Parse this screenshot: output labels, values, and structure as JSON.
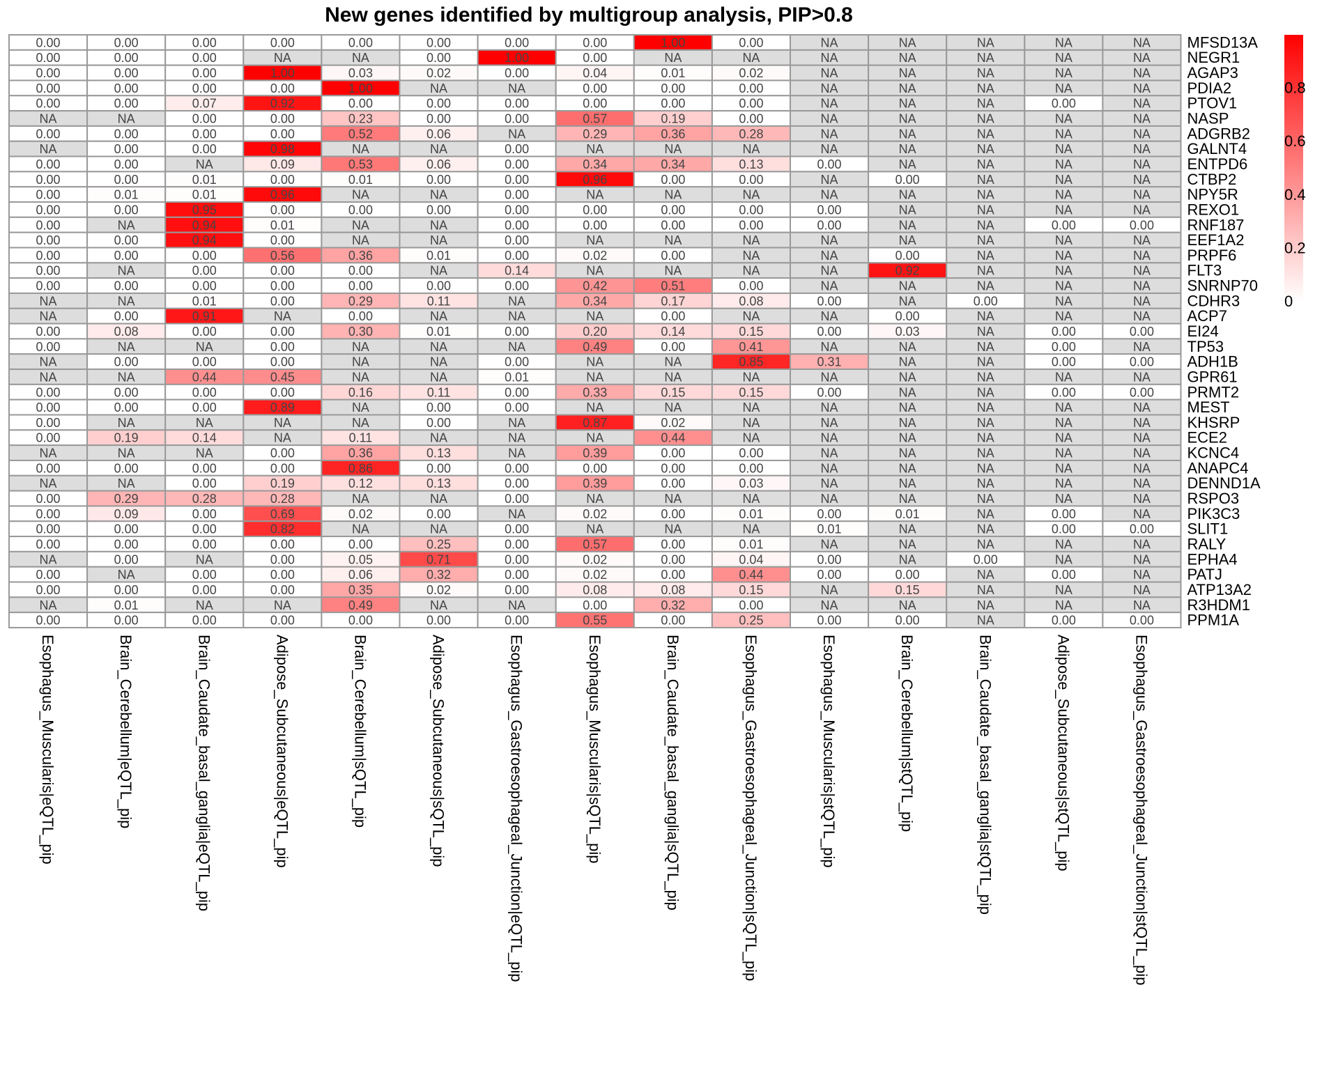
{
  "chart_data": {
    "type": "heatmap",
    "title": "New genes identified by multigroup analysis, PIP>0.8",
    "columns": [
      "Esophagus_Muscularis|eQTL_pip",
      "Brain_Cerebellum|eQTL_pip",
      "Brain_Caudate_basal_ganglia|eQTL_pip",
      "Adipose_Subcutaneous|eQTL_pip",
      "Brain_Cerebellum|sQTL_pip",
      "Adipose_Subcutaneous|sQTL_pip",
      "Esophagus_Gastroesophageal_Junction|eQTL_pip",
      "Esophagus_Muscularis|sQTL_pip",
      "Brain_Caudate_basal_ganglia|sQTL_pip",
      "Esophagus_Gastroesophageal_Junction|sQTL_pip",
      "Esophagus_Muscularis|stQTL_pip",
      "Brain_Cerebellum|stQTL_pip",
      "Brain_Caudate_basal_ganglia|stQTL_pip",
      "Adipose_Subcutaneous|stQTL_pip",
      "Esophagus_Gastroesophageal_Junction|stQTL_pip"
    ],
    "rows": [
      "MFSD13A",
      "NEGR1",
      "AGAP3",
      "PDIA2",
      "PTOV1",
      "NASP",
      "ADGRB2",
      "GALNT4",
      "ENTPD6",
      "CTBP2",
      "NPY5R",
      "REXO1",
      "RNF187",
      "EEF1A2",
      "PRPF6",
      "FLT3",
      "SNRNP70",
      "CDHR3",
      "ACP7",
      "EI24",
      "TP53",
      "ADH1B",
      "GPR61",
      "PRMT2",
      "MEST",
      "KHSRP",
      "ECE2",
      "KCNC4",
      "ANAPC4",
      "DENND1A",
      "RSPO3",
      "PIK3C3",
      "SLIT1",
      "RALY",
      "EPHA4",
      "PATJ",
      "ATP13A2",
      "R3HDM1",
      "PPM1A"
    ],
    "values": [
      [
        "0.00",
        "0.00",
        "0.00",
        "0.00",
        "0.00",
        "0.00",
        "0.00",
        "0.00",
        "1.00",
        "0.00",
        "NA",
        "NA",
        "NA",
        "NA",
        "NA"
      ],
      [
        "0.00",
        "0.00",
        "0.00",
        "NA",
        "NA",
        "0.00",
        "1.00",
        "0.00",
        "NA",
        "NA",
        "NA",
        "NA",
        "NA",
        "NA",
        "NA"
      ],
      [
        "0.00",
        "0.00",
        "0.00",
        "1.00",
        "0.03",
        "0.02",
        "0.00",
        "0.04",
        "0.01",
        "0.02",
        "NA",
        "NA",
        "NA",
        "NA",
        "NA"
      ],
      [
        "0.00",
        "0.00",
        "0.00",
        "0.00",
        "1.00",
        "NA",
        "NA",
        "0.00",
        "0.00",
        "0.00",
        "NA",
        "NA",
        "NA",
        "NA",
        "NA"
      ],
      [
        "0.00",
        "0.00",
        "0.07",
        "0.92",
        "0.00",
        "0.00",
        "0.00",
        "0.00",
        "0.00",
        "0.00",
        "NA",
        "NA",
        "NA",
        "0.00",
        "NA"
      ],
      [
        "NA",
        "NA",
        "0.00",
        "0.00",
        "0.23",
        "0.00",
        "0.00",
        "0.57",
        "0.19",
        "0.00",
        "NA",
        "NA",
        "NA",
        "NA",
        "NA"
      ],
      [
        "0.00",
        "0.00",
        "0.00",
        "0.00",
        "0.52",
        "0.06",
        "NA",
        "0.29",
        "0.36",
        "0.28",
        "NA",
        "NA",
        "NA",
        "NA",
        "NA"
      ],
      [
        "NA",
        "0.00",
        "0.00",
        "0.98",
        "NA",
        "NA",
        "0.00",
        "NA",
        "NA",
        "NA",
        "NA",
        "NA",
        "NA",
        "NA",
        "NA"
      ],
      [
        "0.00",
        "0.00",
        "NA",
        "0.09",
        "0.53",
        "0.06",
        "0.00",
        "0.34",
        "0.34",
        "0.13",
        "0.00",
        "NA",
        "NA",
        "NA",
        "NA"
      ],
      [
        "0.00",
        "0.00",
        "0.01",
        "0.00",
        "0.01",
        "0.00",
        "0.00",
        "0.96",
        "0.00",
        "0.00",
        "NA",
        "0.00",
        "NA",
        "NA",
        "NA"
      ],
      [
        "0.00",
        "0.01",
        "0.01",
        "0.96",
        "NA",
        "NA",
        "0.00",
        "NA",
        "NA",
        "NA",
        "NA",
        "NA",
        "NA",
        "NA",
        "NA"
      ],
      [
        "0.00",
        "0.00",
        "0.95",
        "0.00",
        "0.00",
        "0.00",
        "0.00",
        "0.00",
        "0.00",
        "0.00",
        "0.00",
        "NA",
        "NA",
        "NA",
        "NA"
      ],
      [
        "0.00",
        "NA",
        "0.94",
        "0.01",
        "NA",
        "NA",
        "0.00",
        "0.00",
        "0.00",
        "0.00",
        "0.00",
        "NA",
        "NA",
        "0.00",
        "0.00"
      ],
      [
        "0.00",
        "0.00",
        "0.94",
        "0.00",
        "NA",
        "NA",
        "0.00",
        "NA",
        "NA",
        "NA",
        "NA",
        "NA",
        "NA",
        "NA",
        "NA"
      ],
      [
        "0.00",
        "0.00",
        "0.00",
        "0.56",
        "0.36",
        "0.01",
        "0.00",
        "0.02",
        "0.00",
        "NA",
        "NA",
        "0.00",
        "NA",
        "NA",
        "NA"
      ],
      [
        "0.00",
        "NA",
        "0.00",
        "0.00",
        "0.00",
        "NA",
        "0.14",
        "NA",
        "NA",
        "NA",
        "NA",
        "0.92",
        "NA",
        "NA",
        "NA"
      ],
      [
        "0.00",
        "0.00",
        "0.00",
        "0.00",
        "0.00",
        "0.00",
        "0.00",
        "0.42",
        "0.51",
        "0.00",
        "NA",
        "NA",
        "NA",
        "NA",
        "NA"
      ],
      [
        "NA",
        "NA",
        "0.01",
        "0.00",
        "0.29",
        "0.11",
        "NA",
        "0.34",
        "0.17",
        "0.08",
        "0.00",
        "NA",
        "0.00",
        "NA",
        "NA"
      ],
      [
        "NA",
        "0.00",
        "0.91",
        "NA",
        "0.00",
        "NA",
        "NA",
        "NA",
        "0.00",
        "NA",
        "NA",
        "0.00",
        "NA",
        "NA",
        "NA"
      ],
      [
        "0.00",
        "0.08",
        "0.00",
        "0.00",
        "0.30",
        "0.01",
        "0.00",
        "0.20",
        "0.14",
        "0.15",
        "0.00",
        "0.03",
        "NA",
        "0.00",
        "0.00"
      ],
      [
        "0.00",
        "NA",
        "NA",
        "0.00",
        "NA",
        "NA",
        "NA",
        "0.49",
        "0.00",
        "0.41",
        "NA",
        "NA",
        "NA",
        "0.00",
        "NA"
      ],
      [
        "NA",
        "0.00",
        "0.00",
        "0.00",
        "NA",
        "NA",
        "0.00",
        "NA",
        "NA",
        "0.85",
        "0.31",
        "NA",
        "NA",
        "0.00",
        "0.00"
      ],
      [
        "NA",
        "NA",
        "0.44",
        "0.45",
        "NA",
        "NA",
        "0.01",
        "NA",
        "NA",
        "NA",
        "NA",
        "NA",
        "NA",
        "NA",
        "NA"
      ],
      [
        "0.00",
        "0.00",
        "0.00",
        "0.00",
        "0.16",
        "0.11",
        "0.00",
        "0.33",
        "0.15",
        "0.15",
        "0.00",
        "NA",
        "NA",
        "0.00",
        "0.00"
      ],
      [
        "0.00",
        "0.00",
        "0.00",
        "0.89",
        "NA",
        "0.00",
        "0.00",
        "NA",
        "NA",
        "NA",
        "NA",
        "NA",
        "NA",
        "NA",
        "NA"
      ],
      [
        "0.00",
        "NA",
        "NA",
        "NA",
        "NA",
        "0.00",
        "NA",
        "0.87",
        "0.02",
        "NA",
        "NA",
        "NA",
        "NA",
        "NA",
        "NA"
      ],
      [
        "0.00",
        "0.19",
        "0.14",
        "NA",
        "0.11",
        "NA",
        "NA",
        "NA",
        "0.44",
        "NA",
        "NA",
        "NA",
        "NA",
        "NA",
        "NA"
      ],
      [
        "NA",
        "NA",
        "NA",
        "0.00",
        "0.36",
        "0.13",
        "NA",
        "0.39",
        "0.00",
        "0.00",
        "NA",
        "NA",
        "NA",
        "NA",
        "NA"
      ],
      [
        "0.00",
        "0.00",
        "0.00",
        "0.00",
        "0.86",
        "0.00",
        "0.00",
        "0.00",
        "0.00",
        "0.00",
        "NA",
        "NA",
        "NA",
        "NA",
        "NA"
      ],
      [
        "NA",
        "NA",
        "0.00",
        "0.19",
        "0.12",
        "0.13",
        "0.00",
        "0.39",
        "0.00",
        "0.03",
        "NA",
        "NA",
        "NA",
        "NA",
        "NA"
      ],
      [
        "0.00",
        "0.29",
        "0.28",
        "0.28",
        "NA",
        "NA",
        "0.00",
        "NA",
        "NA",
        "NA",
        "NA",
        "NA",
        "NA",
        "NA",
        "NA"
      ],
      [
        "0.00",
        "0.09",
        "0.00",
        "0.69",
        "0.02",
        "0.00",
        "NA",
        "0.02",
        "0.00",
        "0.01",
        "0.00",
        "0.01",
        "NA",
        "0.00",
        "NA"
      ],
      [
        "0.00",
        "0.00",
        "0.00",
        "0.82",
        "NA",
        "NA",
        "0.00",
        "NA",
        "NA",
        "NA",
        "0.01",
        "NA",
        "NA",
        "0.00",
        "0.00"
      ],
      [
        "0.00",
        "0.00",
        "0.00",
        "0.00",
        "0.00",
        "0.25",
        "0.00",
        "0.57",
        "0.00",
        "0.01",
        "NA",
        "NA",
        "NA",
        "NA",
        "NA"
      ],
      [
        "NA",
        "0.00",
        "NA",
        "0.00",
        "0.05",
        "0.71",
        "0.00",
        "0.02",
        "0.00",
        "0.04",
        "0.00",
        "NA",
        "0.00",
        "NA",
        "NA"
      ],
      [
        "0.00",
        "NA",
        "0.00",
        "0.00",
        "0.06",
        "0.32",
        "0.00",
        "0.02",
        "0.00",
        "0.44",
        "0.00",
        "0.00",
        "NA",
        "0.00",
        "NA"
      ],
      [
        "0.00",
        "0.00",
        "0.00",
        "0.00",
        "0.35",
        "0.02",
        "0.00",
        "0.08",
        "0.08",
        "0.15",
        "NA",
        "0.15",
        "NA",
        "NA",
        "NA"
      ],
      [
        "NA",
        "0.01",
        "NA",
        "NA",
        "0.49",
        "NA",
        "NA",
        "0.00",
        "0.32",
        "0.00",
        "NA",
        "NA",
        "NA",
        "NA",
        "NA"
      ],
      [
        "0.00",
        "0.00",
        "0.00",
        "0.00",
        "0.00",
        "0.00",
        "0.00",
        "0.55",
        "0.00",
        "0.25",
        "0.00",
        "0.00",
        "NA",
        "0.00",
        "0.00"
      ]
    ],
    "na_label": "NA",
    "color_scale": {
      "low": "#ffffff",
      "high": "#ff0000",
      "na": "#dddddd",
      "border": "#999999"
    },
    "value_range": [
      0,
      1
    ],
    "legend_ticks": [
      "0",
      "0.2",
      "0.4",
      "0.6",
      "0.8"
    ]
  }
}
